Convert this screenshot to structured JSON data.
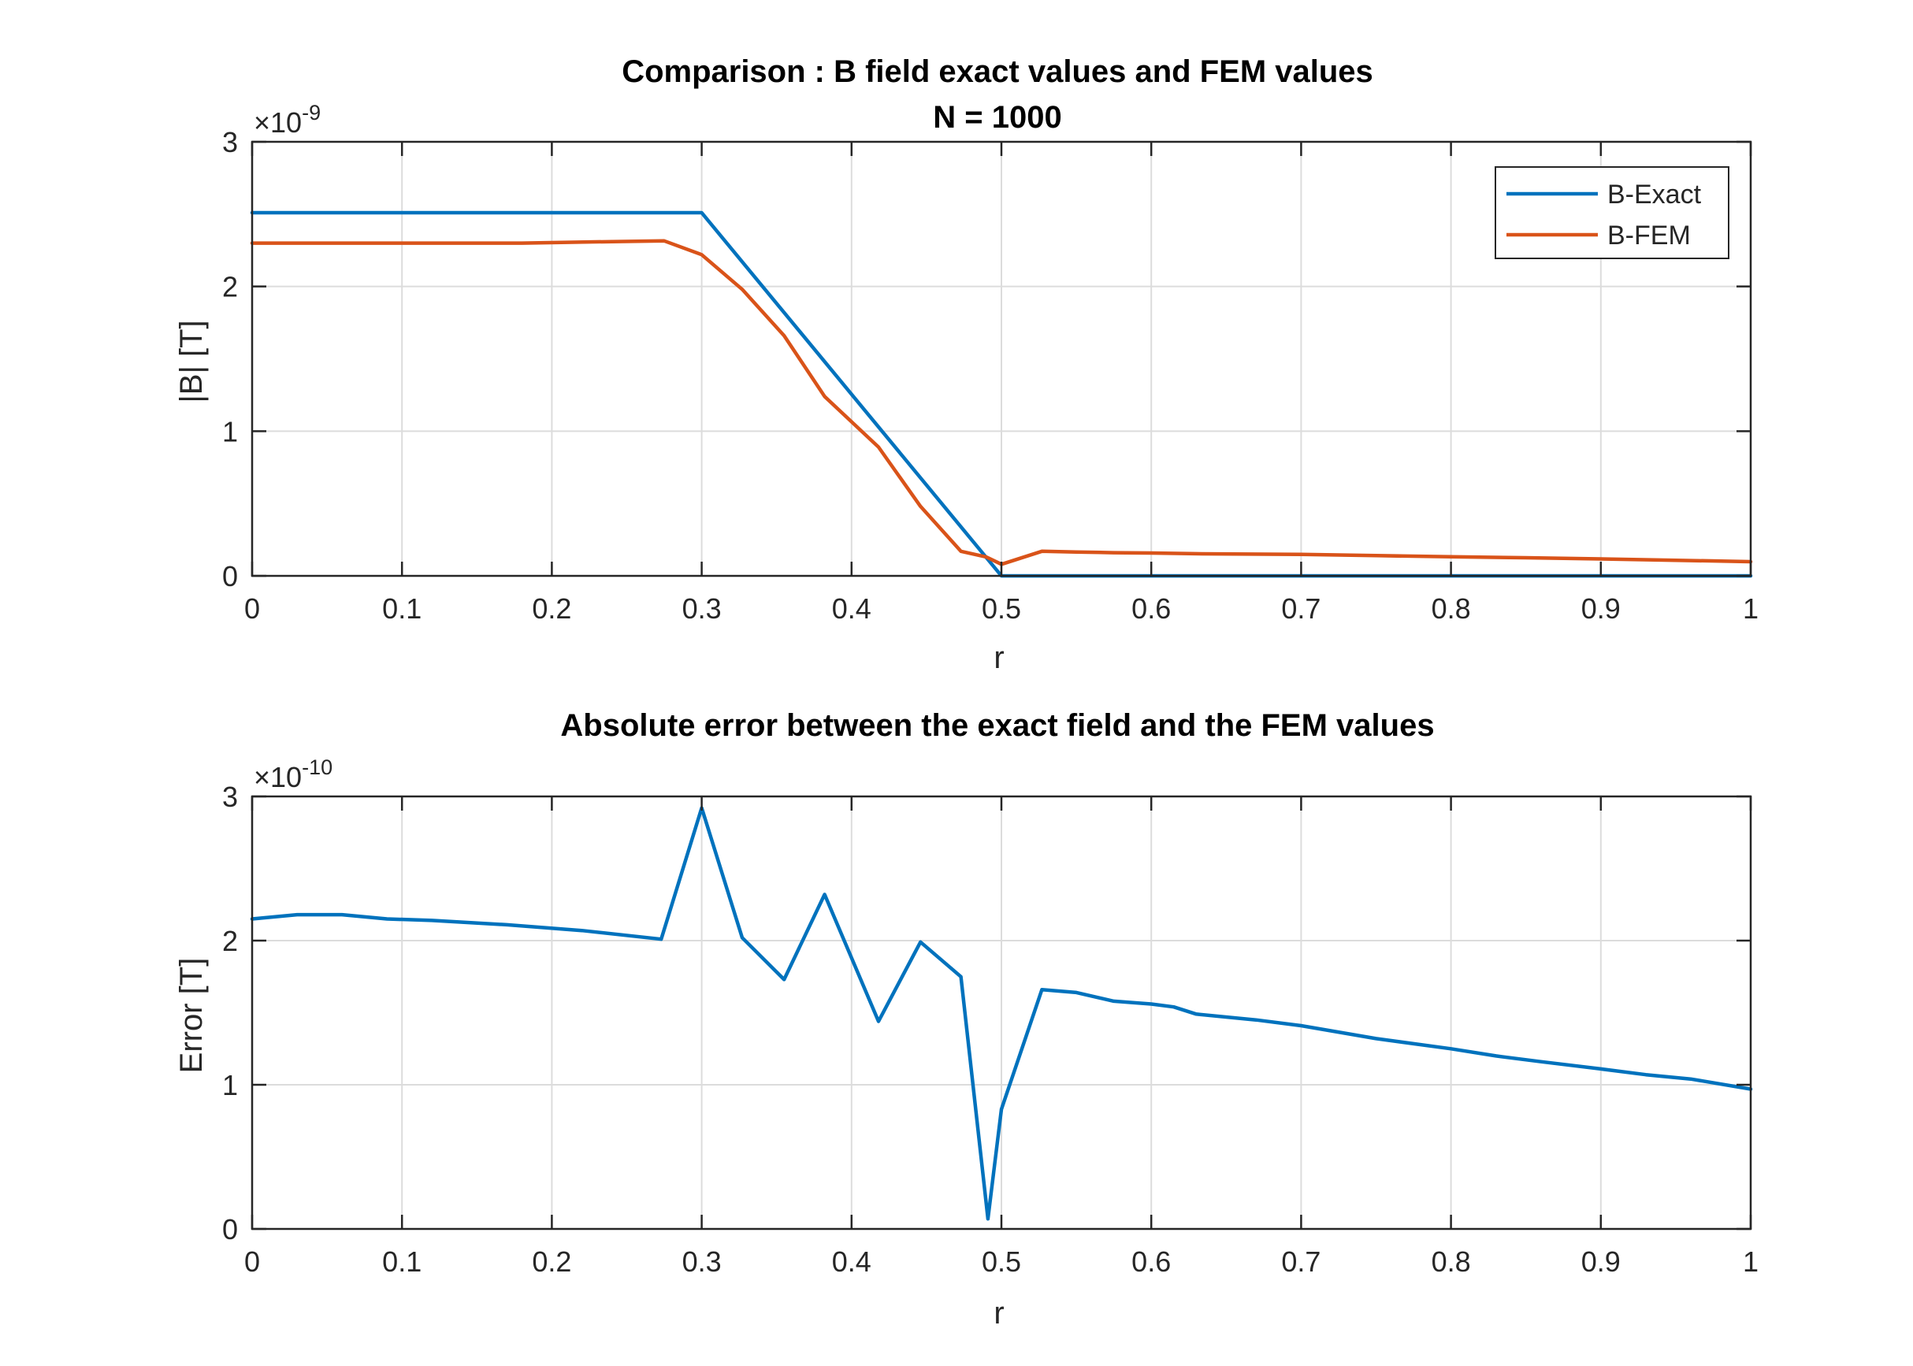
{
  "chart_data": [
    {
      "type": "line",
      "title": "Comparison : B field exact values and FEM values",
      "subtitle": "N = 1000",
      "xlabel": "r",
      "ylabel": "|B| [T]",
      "y_exponent_base": "×10",
      "y_exponent_power": "-9",
      "xlim": [
        0,
        1
      ],
      "ylim": [
        0,
        3
      ],
      "xticks": [
        "0",
        "0.1",
        "0.2",
        "0.3",
        "0.4",
        "0.5",
        "0.6",
        "0.7",
        "0.8",
        "0.9",
        "1"
      ],
      "yticks": [
        "0",
        "1",
        "2",
        "3"
      ],
      "grid": true,
      "legend": "top-right",
      "series": [
        {
          "name": "B-Exact",
          "color": "#0072BD",
          "x": [
            0,
            0.3,
            0.5,
            1.0
          ],
          "y": [
            2.51,
            2.51,
            0.0,
            0.0
          ]
        },
        {
          "name": "B-FEM",
          "color": "#D95319",
          "x": [
            0,
            0.06,
            0.12,
            0.18,
            0.24,
            0.275,
            0.3,
            0.327,
            0.355,
            0.382,
            0.418,
            0.446,
            0.473,
            0.49,
            0.5,
            0.527,
            0.55,
            0.575,
            0.6,
            0.63,
            0.7,
            0.75,
            0.8,
            0.85,
            0.9,
            0.95,
            1.0
          ],
          "y": [
            2.3,
            2.3,
            2.3,
            2.3,
            2.31,
            2.315,
            2.22,
            1.98,
            1.66,
            1.24,
            0.89,
            0.48,
            0.17,
            0.13,
            0.08,
            0.17,
            0.165,
            0.16,
            0.158,
            0.153,
            0.148,
            0.14,
            0.132,
            0.125,
            0.117,
            0.108,
            0.098
          ]
        }
      ]
    },
    {
      "type": "line",
      "title": "Absolute error between the exact field and the FEM values",
      "xlabel": "r",
      "ylabel": "Error [T]",
      "y_exponent_base": "×10",
      "y_exponent_power": "-10",
      "xlim": [
        0,
        1
      ],
      "ylim": [
        0,
        3
      ],
      "xticks": [
        "0",
        "0.1",
        "0.2",
        "0.3",
        "0.4",
        "0.5",
        "0.6",
        "0.7",
        "0.8",
        "0.9",
        "1"
      ],
      "yticks": [
        "0",
        "1",
        "2",
        "3"
      ],
      "grid": true,
      "series": [
        {
          "color": "#0072BD",
          "x": [
            0,
            0.03,
            0.06,
            0.09,
            0.12,
            0.17,
            0.22,
            0.273,
            0.3,
            0.327,
            0.355,
            0.382,
            0.418,
            0.446,
            0.473,
            0.491,
            0.5,
            0.527,
            0.55,
            0.575,
            0.6,
            0.615,
            0.63,
            0.67,
            0.7,
            0.75,
            0.8,
            0.83,
            0.86,
            0.9,
            0.93,
            0.96,
            1.0
          ],
          "y": [
            2.15,
            2.18,
            2.18,
            2.15,
            2.14,
            2.11,
            2.07,
            2.01,
            2.92,
            2.02,
            1.73,
            2.32,
            1.44,
            1.99,
            1.75,
            0.07,
            0.83,
            1.66,
            1.64,
            1.58,
            1.56,
            1.54,
            1.49,
            1.45,
            1.41,
            1.32,
            1.25,
            1.2,
            1.16,
            1.11,
            1.07,
            1.04,
            0.97
          ]
        }
      ]
    }
  ]
}
